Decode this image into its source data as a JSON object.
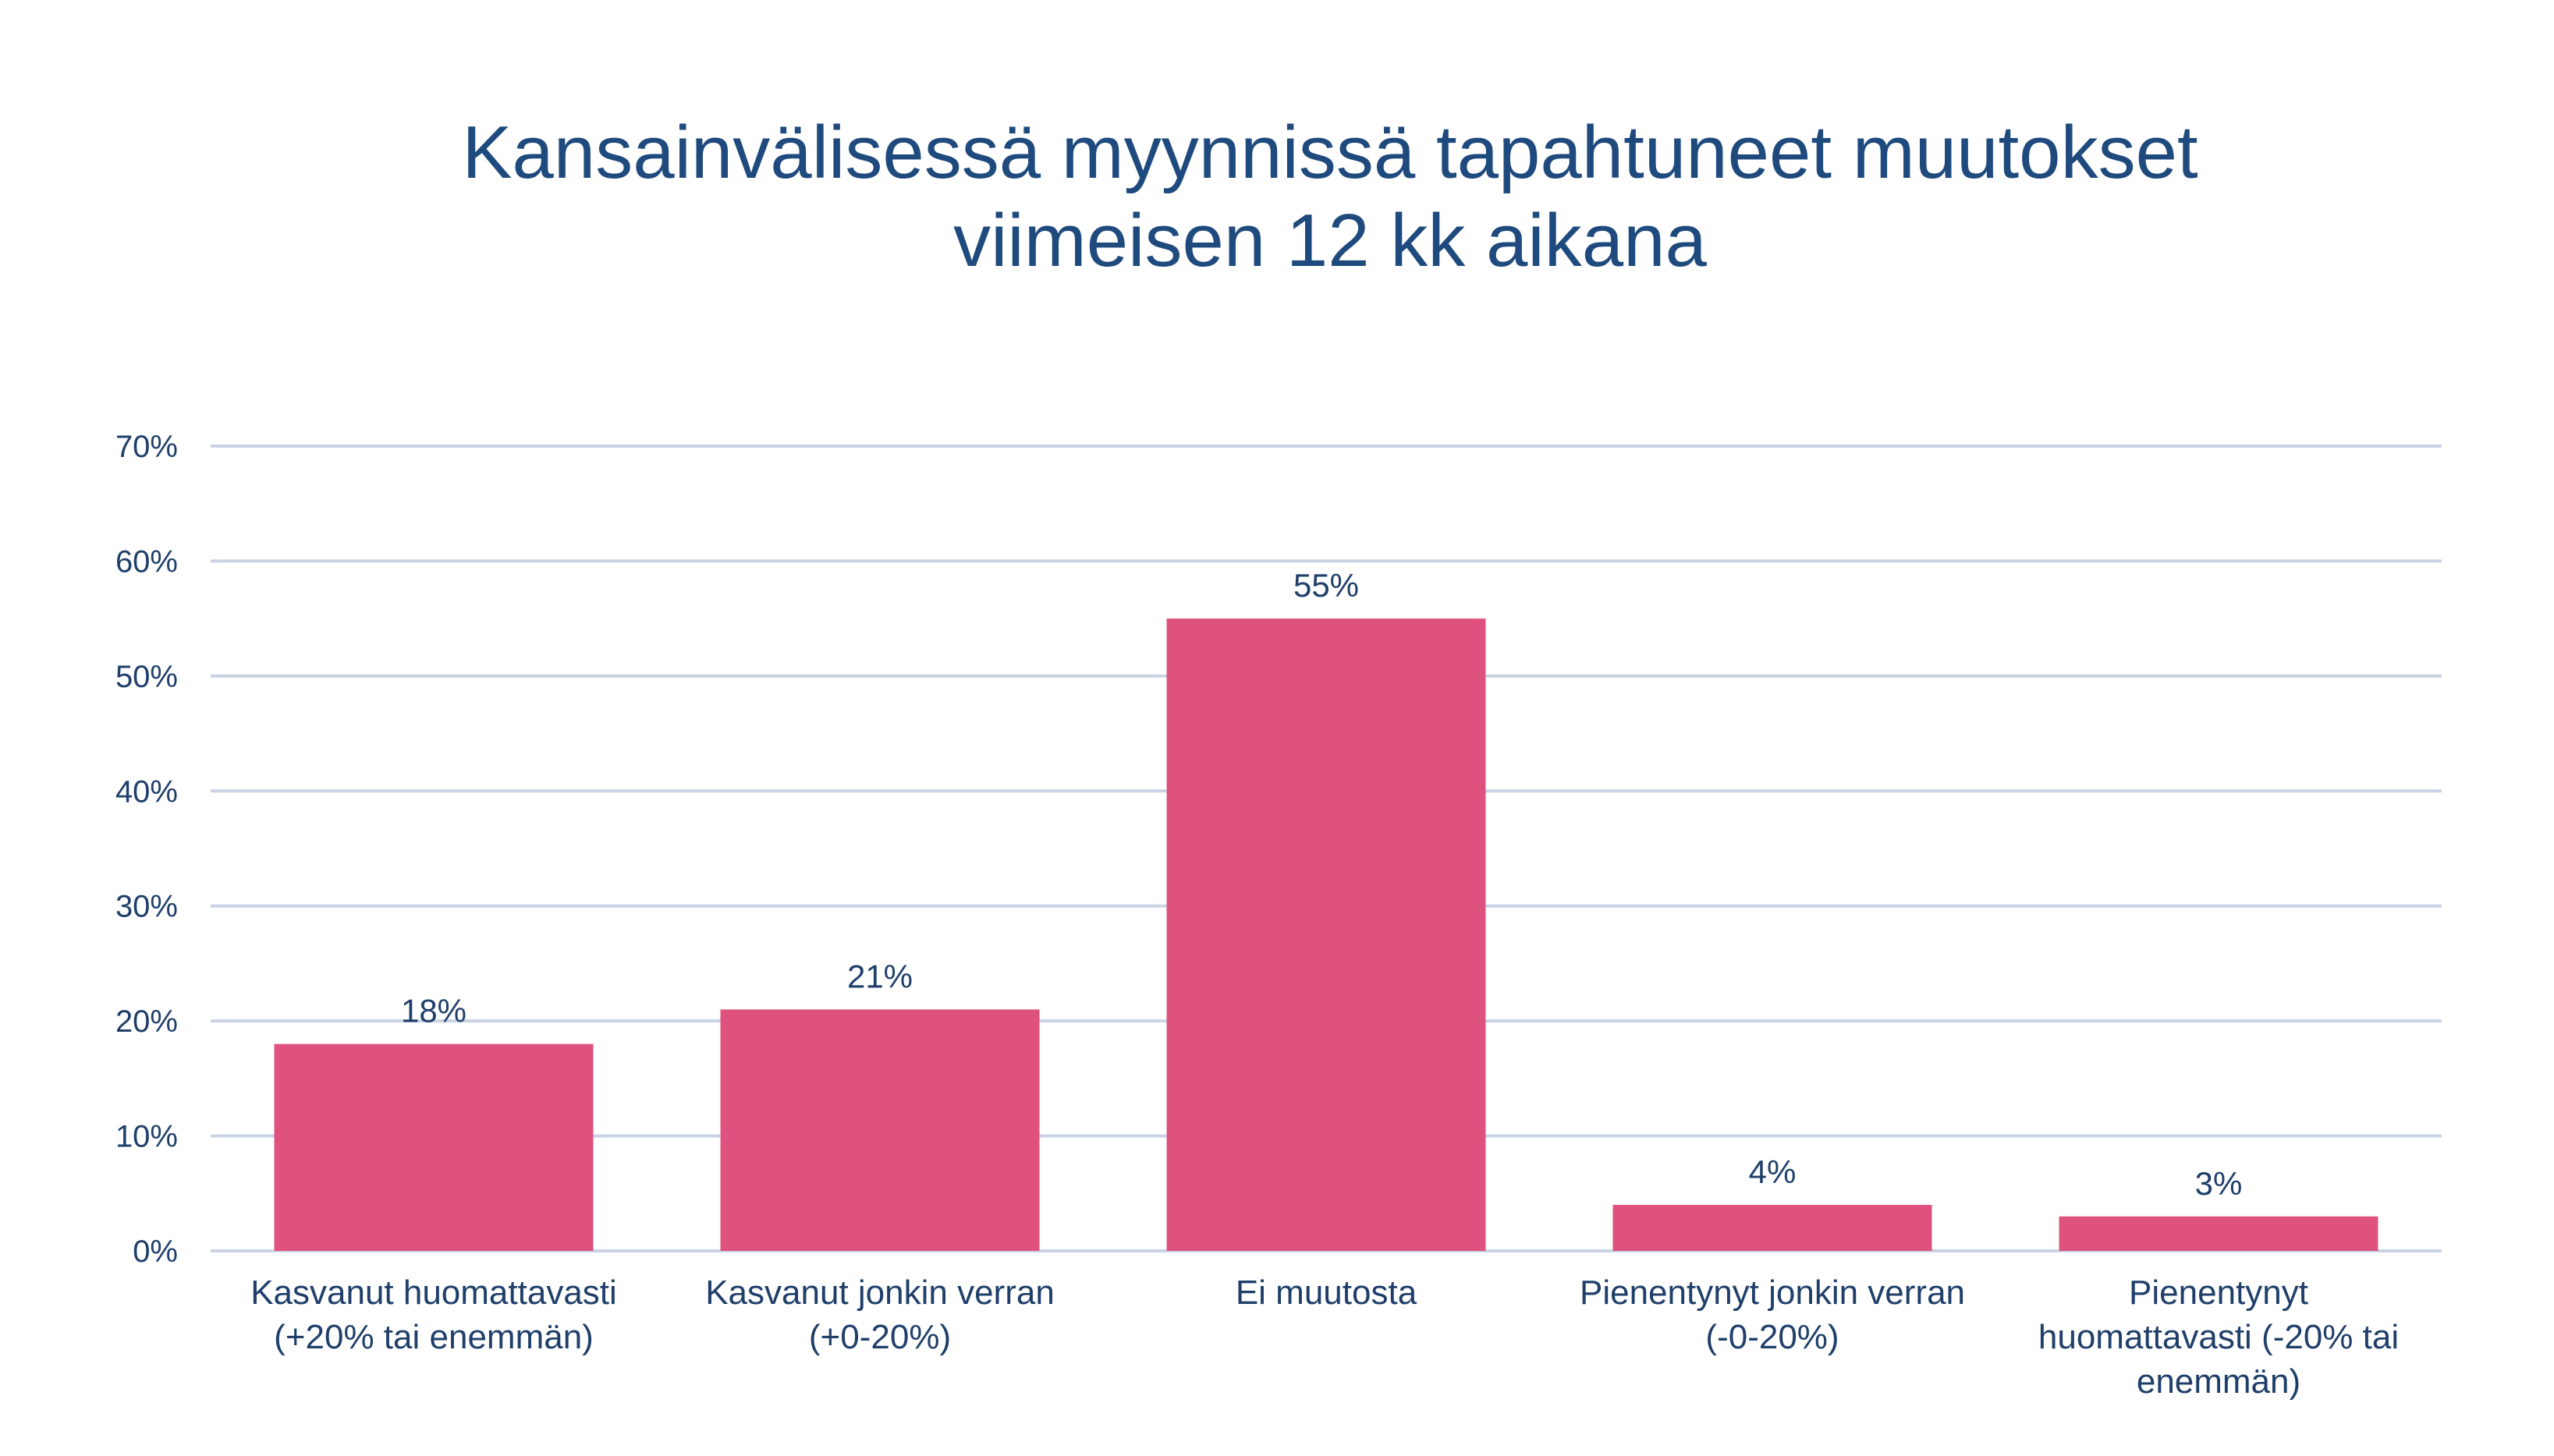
{
  "chart_data": {
    "type": "bar",
    "title_lines": [
      "Kansainvälisessä myynnissä tapahtuneet muutokset",
      "viimeisen 12 kk aikana"
    ],
    "categories": [
      [
        "Kasvanut huomattavasti",
        "(+20% tai enemmän)"
      ],
      [
        "Kasvanut jonkin verran",
        "(+0-20%)"
      ],
      [
        "Ei muutosta"
      ],
      [
        "Pienentynyt jonkin verran",
        "(-0-20%)"
      ],
      [
        "Pienentynyt",
        "huomattavasti (-20% tai",
        "enemmän)"
      ]
    ],
    "values": [
      18,
      21,
      55,
      4,
      3
    ],
    "value_labels": [
      "18%",
      "21%",
      "55%",
      "4%",
      "3%"
    ],
    "ylim": [
      0,
      70
    ],
    "yticks": [
      0,
      10,
      20,
      30,
      40,
      50,
      60,
      70
    ],
    "ytick_labels": [
      "0%",
      "10%",
      "20%",
      "30%",
      "40%",
      "50%",
      "60%",
      "70%"
    ],
    "xlabel": "",
    "ylabel": "",
    "grid": true,
    "legend": "none",
    "colors": {
      "bar": "#e0527e",
      "title": "#1f4a7e",
      "text": "#1f3f6a",
      "grid": "#c9d3e3"
    }
  }
}
